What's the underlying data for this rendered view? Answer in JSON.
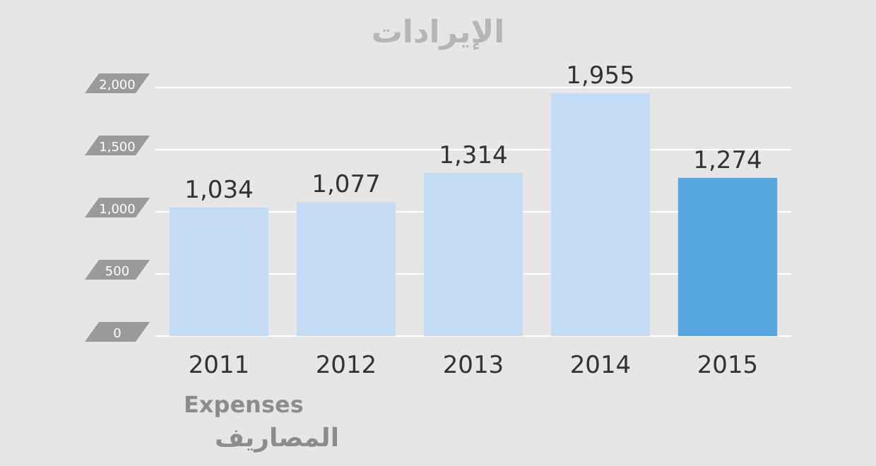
{
  "chart_data": {
    "type": "bar",
    "title": "الإيرادات",
    "categories": [
      "2011",
      "2012",
      "2013",
      "2014",
      "2015"
    ],
    "values": [
      1034,
      1077,
      1314,
      1955,
      1274
    ],
    "colors": [
      "#c4dbf4",
      "#c4dbf4",
      "#c4dbf4",
      "#c4dbf4",
      "#56a7e0"
    ],
    "ylim": [
      0,
      2000
    ],
    "yticks": [
      0,
      500,
      {
        "value": 1000,
        "label": "1,000"
      },
      {
        "value": 1500,
        "label": "1,500"
      },
      {
        "value": 2000,
        "label": "2,000"
      }
    ],
    "grid": "y",
    "value_labels": [
      "1,034",
      "1,077",
      "1,314",
      "1,955",
      "1,274"
    ],
    "annotations": [
      "Expenses",
      "المصاريف"
    ]
  }
}
